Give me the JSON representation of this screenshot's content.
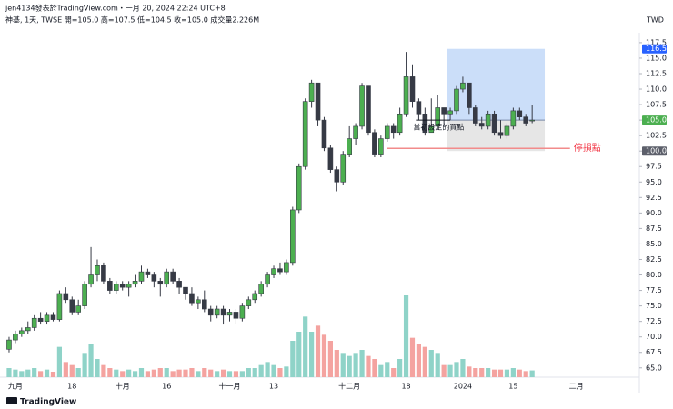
{
  "chart_data": {
    "type": "candlestick",
    "title": "jen4134發表於TradingView.com・一月 20, 2024 22:24 UTC+8",
    "subtitle": "神基, 1天, TWSE  開=105.0 高=107.5 低=104.5 收=105.0 成交量2.226M",
    "currency": "TWD",
    "brand": "TradingView",
    "categories": [
      null,
      "九月",
      null,
      null,
      null,
      null,
      null,
      null,
      null,
      null,
      "18",
      null,
      null,
      null,
      null,
      null,
      null,
      null,
      "十月",
      null,
      null,
      null,
      null,
      null,
      null,
      "16",
      null,
      null,
      null,
      null,
      null,
      null,
      null,
      null,
      null,
      "十一月",
      null,
      null,
      null,
      null,
      null,
      null,
      "13",
      null,
      null,
      null,
      null,
      null,
      null,
      null,
      null,
      null,
      null,
      null,
      "十二月",
      null,
      null,
      null,
      null,
      null,
      null,
      null,
      null,
      "18",
      null,
      null,
      null,
      null,
      null,
      null,
      null,
      null,
      "2024",
      null,
      null,
      null,
      null,
      null,
      null,
      null,
      "15",
      null,
      null,
      null,
      null,
      null,
      null,
      null,
      null,
      null,
      "二月",
      null
    ],
    "open": [
      68,
      69.5,
      70.5,
      71,
      71.5,
      73,
      72.5,
      73.5,
      72.8,
      77,
      76,
      74,
      75,
      78.5,
      80,
      81.5,
      79,
      77.5,
      78.5,
      78,
      78.5,
      79,
      80.5,
      80,
      79,
      78.5,
      80.5,
      79,
      78,
      77,
      75.5,
      76,
      74.5,
      73.5,
      74.5,
      73.5,
      74,
      73,
      75,
      76,
      77,
      78.5,
      80,
      81,
      80.5,
      82,
      90.5,
      97.5,
      108,
      111,
      105,
      100.5,
      97,
      95,
      99.5,
      102,
      104,
      110.5,
      103,
      99.5,
      102,
      104,
      103,
      106,
      112,
      108,
      106,
      103,
      104,
      107,
      106,
      106.5,
      110,
      111,
      107,
      104.5,
      104,
      106,
      103,
      102.5,
      104,
      106.5,
      105.5,
      105,
      null,
      null,
      null,
      null,
      null,
      null,
      null,
      null
    ],
    "high": [
      70,
      71,
      71.5,
      72.5,
      73.5,
      74,
      74,
      74,
      77.5,
      78,
      76.5,
      76,
      79,
      84.5,
      82.5,
      82,
      79.5,
      79,
      79,
      79,
      80,
      81.5,
      81,
      80.5,
      79.5,
      81,
      81,
      79.5,
      78,
      78,
      76.5,
      77.5,
      75,
      75,
      75,
      74.5,
      74.5,
      75.5,
      76.5,
      77.5,
      79,
      80.5,
      81.5,
      82,
      82.5,
      91,
      98,
      108.5,
      111.5,
      111,
      105.5,
      101,
      97.5,
      100,
      104,
      104.5,
      111,
      110.5,
      103.5,
      102.5,
      104.5,
      104.5,
      107,
      116,
      114,
      108.5,
      107,
      108.5,
      109,
      107,
      107,
      110.5,
      112,
      111,
      107.5,
      105.5,
      106.5,
      106.5,
      105,
      104.5,
      107,
      107,
      106,
      107.5,
      null,
      null,
      null,
      null,
      null,
      null,
      null,
      null
    ],
    "low": [
      67.5,
      69,
      70,
      70.5,
      71,
      72,
      72,
      72.5,
      72.5,
      75.5,
      73.5,
      73.5,
      74.5,
      78,
      79,
      78.5,
      77,
      77,
      77.5,
      76.5,
      78,
      78.5,
      79.5,
      78,
      76.5,
      78,
      78.5,
      77,
      76,
      75,
      74.5,
      74,
      72.5,
      73,
      72,
      72.5,
      72,
      72.5,
      74.5,
      75.5,
      76.5,
      78,
      79.5,
      80,
      80,
      81.5,
      90,
      97,
      107,
      104,
      100,
      96.5,
      93.5,
      94.5,
      99,
      101,
      103.5,
      102.5,
      99,
      99,
      101.5,
      102,
      102.5,
      105.5,
      107,
      105,
      102.5,
      103,
      103.5,
      104,
      105,
      106,
      109.5,
      106,
      104,
      103.5,
      103.5,
      102.5,
      102,
      102,
      103.5,
      105,
      104,
      104.5,
      null,
      null,
      null,
      null,
      null,
      null,
      null,
      null
    ],
    "close": [
      69.5,
      70.5,
      71,
      71.5,
      73,
      72.5,
      73.5,
      72.8,
      77,
      76,
      74,
      75,
      78.5,
      80,
      81.5,
      79,
      77.5,
      78.5,
      78,
      78.5,
      79,
      80.5,
      80,
      79,
      78.5,
      80.5,
      79,
      78,
      77,
      75.5,
      76,
      74.5,
      73.5,
      74.5,
      73.5,
      74,
      73,
      75,
      76,
      77,
      78.5,
      80,
      81,
      80.5,
      82,
      90.5,
      97.5,
      108,
      111,
      105,
      100.5,
      97,
      95,
      99.5,
      102,
      104,
      110.5,
      103,
      99.5,
      102,
      104,
      103,
      106,
      112,
      108,
      106,
      103,
      104,
      107,
      106,
      106.5,
      110,
      111,
      107,
      104.5,
      104,
      106,
      103,
      102.5,
      104,
      106.5,
      105.5,
      104.5,
      105,
      null,
      null,
      null,
      null,
      null,
      null,
      null,
      null
    ],
    "volume": [
      3,
      2.5,
      2,
      2.5,
      3,
      2,
      2.5,
      1.8,
      10,
      5,
      4,
      3,
      8,
      11,
      6,
      4,
      3,
      2.5,
      2,
      2.5,
      2,
      3,
      2,
      2.5,
      3,
      3,
      2,
      2.5,
      2.5,
      3,
      2,
      3,
      2.5,
      2,
      2.5,
      2,
      2,
      2,
      3,
      3,
      4,
      5,
      4,
      3,
      3.5,
      12,
      15,
      20,
      15,
      17,
      14,
      12,
      9,
      8,
      7,
      8,
      9,
      7,
      6,
      4,
      5,
      3,
      6,
      27,
      13,
      11,
      10,
      9,
      8,
      4,
      4,
      5,
      6,
      3.5,
      3,
      3,
      3,
      2.5,
      2.5,
      2.5,
      3,
      2.5,
      2,
      2.226,
      null,
      null,
      null,
      null,
      null,
      null,
      null,
      null
    ],
    "up_color": "#4caf50",
    "down_color": "#363a45",
    "volume_up_color": "#8fd3c8",
    "volume_down_color": "#f4a3a0",
    "ylim": [
      63.5,
      119.1
    ],
    "yticks": [
      {
        "value": 65,
        "label": "65.0"
      },
      67.5,
      {
        "value": 70,
        "label": "70.0"
      },
      72.5,
      {
        "value": 75,
        "label": "75.0"
      },
      77.5,
      {
        "value": 80,
        "label": "80.0"
      },
      82.5,
      {
        "value": 85,
        "label": "85.0"
      },
      87.5,
      {
        "value": 90,
        "label": "90.0"
      },
      92.5,
      {
        "value": 95,
        "label": "95.0"
      },
      97.5,
      {
        "value": 100,
        "label": "100.0"
      },
      102.5,
      {
        "value": 105,
        "label": "105.0"
      },
      107.5,
      {
        "value": 110,
        "label": "110.0"
      },
      112.5,
      {
        "value": 115,
        "label": "115.0"
      },
      117.5
    ],
    "grid": false,
    "price_markers": [
      {
        "value": 116.5,
        "label": "116.5",
        "color": "#2962ff"
      },
      {
        "value": 105,
        "label": "105.0",
        "color": "#4caf50"
      },
      {
        "value": 100,
        "label": "100.0",
        "color": "#5d606b"
      }
    ],
    "position": {
      "start": 70,
      "end": 85,
      "target_color": "#c5daf8",
      "stop_color": "#e3e3e3"
    },
    "stop_line": {
      "start": 60,
      "end": 89,
      "color": "#f28b8b"
    },
    "annotations": {
      "entry_label": "當初設定的買點",
      "stop_label": "停損點",
      "stop_label_color": "#f23645"
    }
  }
}
